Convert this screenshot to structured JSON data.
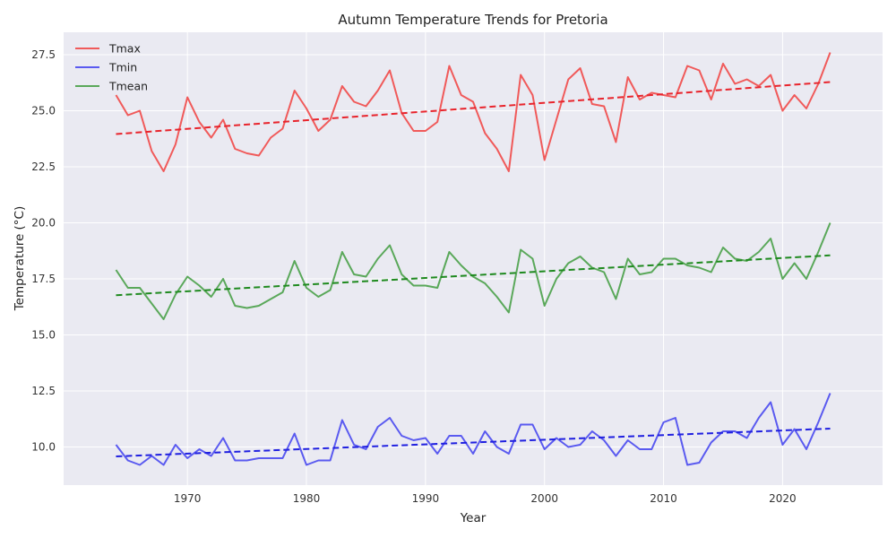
{
  "chart_data": {
    "type": "line",
    "title": "Autumn Temperature Trends for Pretoria",
    "xlabel": "Year",
    "ylabel": "Temperature (°C)",
    "xlim": [
      1959.6,
      2028.4
    ],
    "ylim": [
      8.3,
      28.5
    ],
    "xticks": [
      1970,
      1980,
      1990,
      2000,
      2010,
      2020
    ],
    "yticks": [
      10.0,
      12.5,
      15.0,
      17.5,
      20.0,
      22.5,
      25.0,
      27.5
    ],
    "ytick_labels": [
      "10.0",
      "12.5",
      "15.0",
      "17.5",
      "20.0",
      "22.5",
      "25.0",
      "27.5"
    ],
    "grid": true,
    "legend_position": "top-left",
    "x": [
      1964,
      1965,
      1966,
      1967,
      1968,
      1969,
      1970,
      1971,
      1972,
      1973,
      1974,
      1975,
      1976,
      1977,
      1978,
      1979,
      1980,
      1981,
      1982,
      1983,
      1984,
      1985,
      1986,
      1987,
      1988,
      1989,
      1990,
      1991,
      1992,
      1993,
      1994,
      1995,
      1996,
      1997,
      1998,
      1999,
      2000,
      2001,
      2002,
      2003,
      2004,
      2005,
      2006,
      2007,
      2008,
      2009,
      2010,
      2011,
      2012,
      2013,
      2014,
      2015,
      2016,
      2017,
      2018,
      2019,
      2020,
      2021,
      2022,
      2023,
      2024
    ],
    "series": [
      {
        "name": "Tmax",
        "color": "#f05a5a",
        "trend_color": "#e8242c",
        "values": [
          25.7,
          24.8,
          25.0,
          23.2,
          22.3,
          23.5,
          25.6,
          24.5,
          23.8,
          24.6,
          23.3,
          23.1,
          23.0,
          23.8,
          24.2,
          25.9,
          25.1,
          24.1,
          24.6,
          26.1,
          25.4,
          25.2,
          25.9,
          26.8,
          24.9,
          24.1,
          24.1,
          24.5,
          27.0,
          25.7,
          25.4,
          24.0,
          23.3,
          22.3,
          26.6,
          25.7,
          22.8,
          24.6,
          26.4,
          26.9,
          25.3,
          25.2,
          23.6,
          26.5,
          25.5,
          25.8,
          25.7,
          25.6,
          27.0,
          26.8,
          25.5,
          27.1,
          26.2,
          26.4,
          26.1,
          26.6,
          25.0,
          25.7,
          25.1,
          26.2,
          27.6
        ],
        "trend": [
          23.96,
          26.28
        ]
      },
      {
        "name": "Tmin",
        "color": "#5a5af0",
        "trend_color": "#2020e0",
        "values": [
          10.1,
          9.4,
          9.2,
          9.6,
          9.2,
          10.1,
          9.5,
          9.9,
          9.6,
          10.4,
          9.4,
          9.4,
          9.5,
          9.5,
          9.5,
          10.6,
          9.2,
          9.4,
          9.4,
          11.2,
          10.1,
          9.9,
          10.9,
          11.3,
          10.5,
          10.3,
          10.4,
          9.7,
          10.5,
          10.5,
          9.7,
          10.7,
          10.0,
          9.7,
          11.0,
          11.0,
          9.9,
          10.4,
          10.0,
          10.1,
          10.7,
          10.3,
          9.6,
          10.3,
          9.9,
          9.9,
          11.1,
          11.3,
          9.2,
          9.3,
          10.2,
          10.7,
          10.7,
          10.4,
          11.3,
          12.0,
          10.1,
          10.8,
          9.9,
          11.1,
          12.4
        ],
        "trend": [
          9.58,
          10.82
        ]
      },
      {
        "name": "Tmean",
        "color": "#5aa85a",
        "trend_color": "#1f8a1f",
        "values": [
          17.9,
          17.1,
          17.1,
          16.4,
          15.7,
          16.8,
          17.6,
          17.2,
          16.7,
          17.5,
          16.3,
          16.2,
          16.3,
          16.6,
          16.9,
          18.3,
          17.1,
          16.7,
          17.0,
          18.7,
          17.7,
          17.6,
          18.4,
          19.0,
          17.7,
          17.2,
          17.2,
          17.1,
          18.7,
          18.1,
          17.6,
          17.3,
          16.7,
          16.0,
          18.8,
          18.4,
          16.3,
          17.5,
          18.2,
          18.5,
          18.0,
          17.8,
          16.6,
          18.4,
          17.7,
          17.8,
          18.4,
          18.4,
          18.1,
          18.0,
          17.8,
          18.9,
          18.4,
          18.3,
          18.7,
          19.3,
          17.5,
          18.2,
          17.5,
          18.7,
          20.0
        ],
        "trend": [
          16.77,
          18.55
        ]
      }
    ]
  }
}
